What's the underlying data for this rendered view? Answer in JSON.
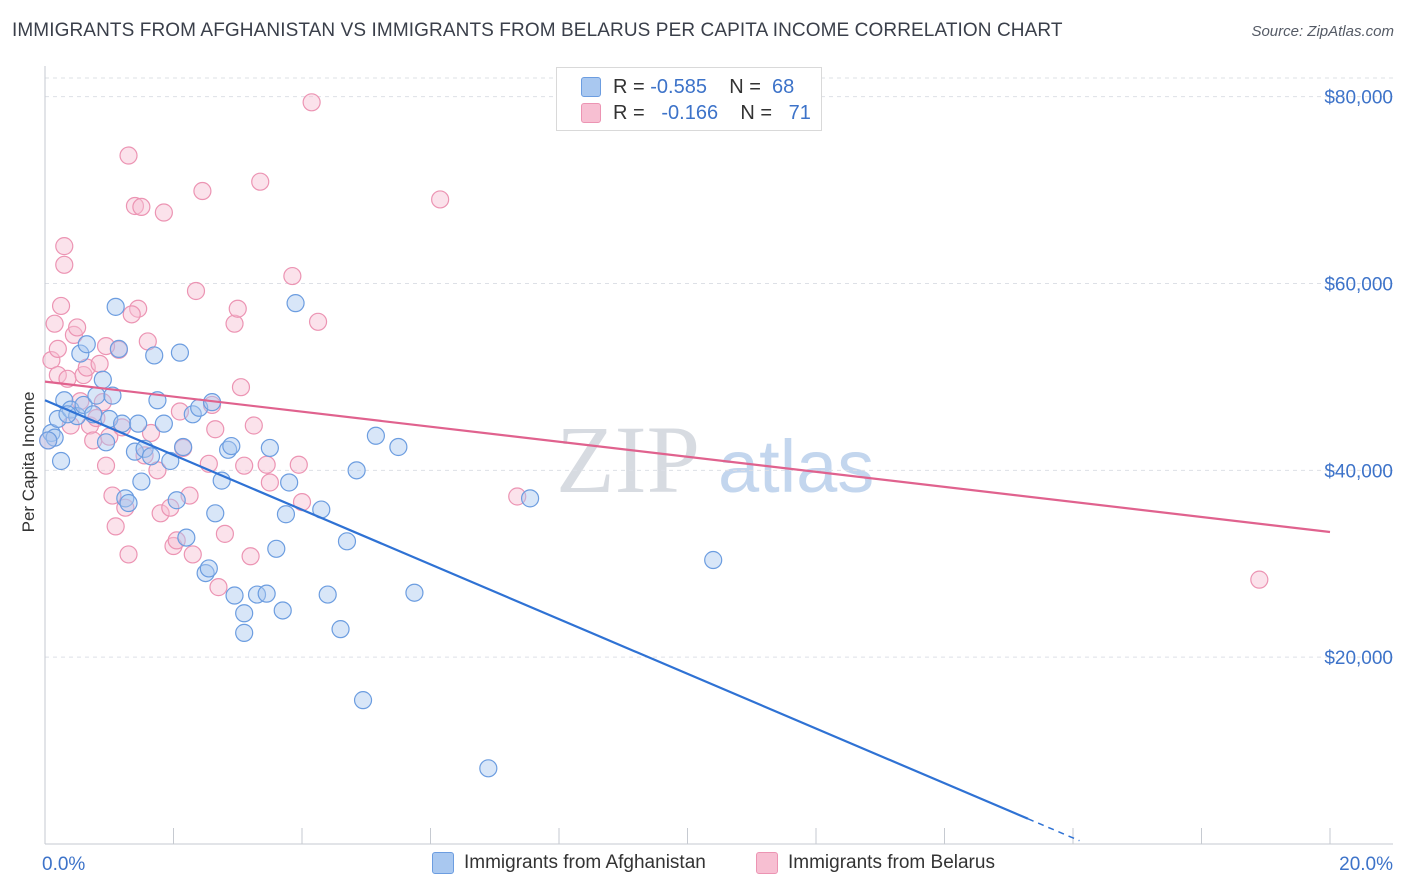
{
  "header": {
    "title": "IMMIGRANTS FROM AFGHANISTAN VS IMMIGRANTS FROM BELARUS PER CAPITA INCOME CORRELATION CHART",
    "source": "Source: ZipAtlas.com"
  },
  "watermark": {
    "zip": "ZIP",
    "atlas": "atlas"
  },
  "legend": {
    "rows": [
      {
        "r_label": "R =",
        "r_value": "-0.585",
        "n_label": "N =",
        "n_value": "68"
      },
      {
        "r_label": "R =",
        "r_value": "-0.166",
        "n_label": "N =",
        "n_value": "71"
      }
    ]
  },
  "bottom_legend": {
    "afghanistan": "Immigrants from Afghanistan",
    "belarus": "Immigrants from Belarus"
  },
  "colors": {
    "afghanistan_fill": "#a9c8f0",
    "afghanistan_stroke": "#6c9de0",
    "afghanistan_line": "#2f72d4",
    "belarus_fill": "#f7bfd2",
    "belarus_stroke": "#ec94b3",
    "belarus_line": "#e0628e",
    "tick_text": "#3d73c9",
    "grid": "#dde0e6"
  },
  "chart_data": {
    "type": "scatter",
    "title": "IMMIGRANTS FROM AFGHANISTAN VS IMMIGRANTS FROM BELARUS PER CAPITA INCOME CORRELATION CHART",
    "xlabel": "",
    "ylabel": "Per Capita Income",
    "xlim": [
      0,
      20
    ],
    "ylim": [
      0,
      82000
    ],
    "x_tick_labels": [
      "0.0%",
      "20.0%"
    ],
    "y_ticks": [
      20000,
      40000,
      60000,
      80000
    ],
    "y_tick_labels": [
      "$20,000",
      "$40,000",
      "$60,000",
      "$80,000"
    ],
    "grid": true,
    "legend_position": "top-center",
    "series": [
      {
        "name": "Immigrants from Afghanistan",
        "r": -0.585,
        "n": 68,
        "trend": {
          "x0": 0,
          "y0": 47500,
          "x1": 15.3,
          "y1": 2700,
          "dash_to_x": 16.1
        },
        "points": [
          [
            0.1,
            44000
          ],
          [
            0.15,
            43500
          ],
          [
            0.2,
            45500
          ],
          [
            0.25,
            41000
          ],
          [
            0.3,
            47500
          ],
          [
            0.4,
            46500
          ],
          [
            0.5,
            45800
          ],
          [
            0.55,
            52500
          ],
          [
            0.6,
            47000
          ],
          [
            0.65,
            53500
          ],
          [
            0.75,
            46000
          ],
          [
            0.8,
            48000
          ],
          [
            0.9,
            49700
          ],
          [
            0.95,
            43000
          ],
          [
            1.0,
            45500
          ],
          [
            1.1,
            57500
          ],
          [
            1.15,
            53000
          ],
          [
            1.2,
            45000
          ],
          [
            1.25,
            37000
          ],
          [
            1.3,
            36500
          ],
          [
            1.4,
            42000
          ],
          [
            1.45,
            45000
          ],
          [
            1.5,
            38800
          ],
          [
            1.55,
            42300
          ],
          [
            1.65,
            41500
          ],
          [
            1.7,
            52300
          ],
          [
            1.75,
            47500
          ],
          [
            1.85,
            45000
          ],
          [
            1.95,
            41000
          ],
          [
            2.1,
            52600
          ],
          [
            2.15,
            42500
          ],
          [
            2.2,
            32800
          ],
          [
            2.3,
            46000
          ],
          [
            2.4,
            46700
          ],
          [
            2.5,
            29000
          ],
          [
            2.55,
            29500
          ],
          [
            2.6,
            47300
          ],
          [
            2.65,
            35400
          ],
          [
            2.75,
            38900
          ],
          [
            2.85,
            42200
          ],
          [
            2.9,
            42600
          ],
          [
            2.95,
            26600
          ],
          [
            3.1,
            24700
          ],
          [
            3.1,
            22600
          ],
          [
            3.3,
            26700
          ],
          [
            3.45,
            26800
          ],
          [
            3.5,
            42400
          ],
          [
            3.6,
            31600
          ],
          [
            3.7,
            25000
          ],
          [
            3.75,
            35300
          ],
          [
            3.8,
            38700
          ],
          [
            3.9,
            57900
          ],
          [
            4.3,
            35800
          ],
          [
            4.4,
            26700
          ],
          [
            4.6,
            23000
          ],
          [
            4.7,
            32400
          ],
          [
            4.95,
            15400
          ],
          [
            5.15,
            43700
          ],
          [
            5.5,
            42500
          ],
          [
            5.75,
            26900
          ],
          [
            6.9,
            8100
          ],
          [
            7.55,
            37000
          ],
          [
            10.4,
            30400
          ],
          [
            0.05,
            43200
          ],
          [
            0.35,
            46000
          ],
          [
            1.05,
            48000
          ],
          [
            2.05,
            36800
          ],
          [
            4.85,
            40000
          ]
        ]
      },
      {
        "name": "Immigrants from Belarus",
        "r": -0.166,
        "n": 71,
        "trend": {
          "x0": 0,
          "y0": 49500,
          "x1": 20,
          "y1": 33400
        },
        "points": [
          [
            0.05,
            43200
          ],
          [
            0.1,
            51800
          ],
          [
            0.15,
            55700
          ],
          [
            0.2,
            50200
          ],
          [
            0.25,
            57600
          ],
          [
            0.3,
            64000
          ],
          [
            0.3,
            62000
          ],
          [
            0.35,
            49800
          ],
          [
            0.4,
            44800
          ],
          [
            0.45,
            54500
          ],
          [
            0.5,
            55300
          ],
          [
            0.55,
            47400
          ],
          [
            0.6,
            50200
          ],
          [
            0.65,
            51000
          ],
          [
            0.7,
            44800
          ],
          [
            0.75,
            43200
          ],
          [
            0.8,
            45600
          ],
          [
            0.85,
            51400
          ],
          [
            0.9,
            47300
          ],
          [
            0.95,
            40500
          ],
          [
            1.0,
            43600
          ],
          [
            1.05,
            37300
          ],
          [
            1.1,
            34000
          ],
          [
            1.15,
            52900
          ],
          [
            1.2,
            44600
          ],
          [
            1.25,
            36000
          ],
          [
            1.3,
            31000
          ],
          [
            1.3,
            73700
          ],
          [
            1.4,
            68300
          ],
          [
            1.45,
            57300
          ],
          [
            1.5,
            68200
          ],
          [
            1.55,
            41600
          ],
          [
            1.6,
            53800
          ],
          [
            1.65,
            44000
          ],
          [
            1.75,
            40000
          ],
          [
            1.8,
            35400
          ],
          [
            1.85,
            67600
          ],
          [
            1.95,
            36000
          ],
          [
            2.0,
            31900
          ],
          [
            2.05,
            32500
          ],
          [
            2.1,
            46300
          ],
          [
            2.15,
            42400
          ],
          [
            2.25,
            37300
          ],
          [
            2.3,
            31000
          ],
          [
            2.35,
            59200
          ],
          [
            2.45,
            69900
          ],
          [
            2.55,
            40700
          ],
          [
            2.6,
            47000
          ],
          [
            2.7,
            27500
          ],
          [
            2.8,
            33200
          ],
          [
            2.95,
            55700
          ],
          [
            3.0,
            57300
          ],
          [
            3.05,
            48900
          ],
          [
            3.1,
            40500
          ],
          [
            3.2,
            30800
          ],
          [
            3.35,
            70900
          ],
          [
            3.45,
            40600
          ],
          [
            3.5,
            38700
          ],
          [
            3.85,
            60800
          ],
          [
            3.95,
            40600
          ],
          [
            4.0,
            36600
          ],
          [
            4.25,
            55900
          ],
          [
            4.15,
            79400
          ],
          [
            6.15,
            69000
          ],
          [
            7.35,
            37200
          ],
          [
            18.9,
            28300
          ],
          [
            0.2,
            53000
          ],
          [
            0.95,
            53300
          ],
          [
            1.35,
            56700
          ],
          [
            2.65,
            44400
          ],
          [
            3.25,
            44800
          ]
        ]
      }
    ]
  }
}
